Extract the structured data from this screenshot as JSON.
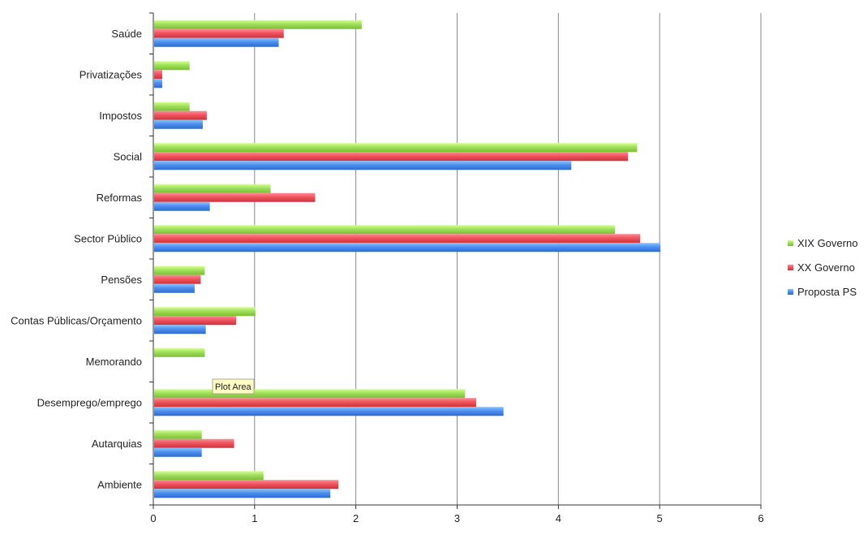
{
  "chart_data": {
    "type": "bar",
    "orientation": "horizontal",
    "title": "",
    "xlabel": "",
    "ylabel": "",
    "categories": [
      "Saúde",
      "Privatizações",
      "Impostos",
      "Social",
      "Reformas",
      "Sector Público",
      "Pensões",
      "Contas Públicas/Orçamento",
      "Memorando",
      "Desemprego/emprego",
      "Autarquias",
      "Ambiente"
    ],
    "series": [
      {
        "name": "XIX Governo",
        "color": "#9fe05a",
        "values": [
          2.05,
          0.35,
          0.35,
          4.77,
          1.15,
          4.55,
          0.5,
          1.0,
          0.5,
          3.07,
          0.47,
          1.08
        ]
      },
      {
        "name": "XX Governo",
        "color": "#f0545f",
        "values": [
          1.28,
          0.08,
          0.52,
          4.68,
          1.59,
          4.8,
          0.46,
          0.81,
          0.0,
          3.18,
          0.79,
          1.82
        ]
      },
      {
        "name": "Proposta PS",
        "color": "#4f8ff0",
        "values": [
          1.23,
          0.08,
          0.48,
          4.12,
          0.55,
          5.0,
          0.4,
          0.51,
          0.0,
          3.45,
          0.47,
          1.74
        ]
      }
    ],
    "xlim": [
      0,
      6
    ],
    "xticks": [
      "0",
      "1",
      "2",
      "3",
      "4",
      "5",
      "6"
    ],
    "grid": "vertical",
    "legend": "right"
  },
  "tooltip": {
    "text": "Plot Area"
  }
}
